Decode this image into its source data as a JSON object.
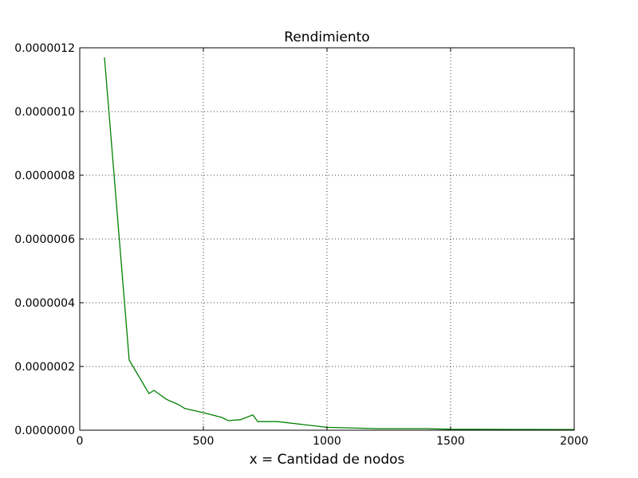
{
  "chart_data": {
    "type": "line",
    "title": "Rendimiento",
    "xlabel": "x = Cantidad de nodos",
    "ylabel": "",
    "xlim": [
      0,
      2000
    ],
    "ylim": [
      0,
      1.2e-06
    ],
    "x_ticks": [
      0,
      500,
      1000,
      1500,
      2000
    ],
    "x_tick_labels": [
      "0",
      "500",
      "1000",
      "1500",
      "2000"
    ],
    "y_ticks": [
      0,
      2e-07,
      4e-07,
      6e-07,
      8e-07,
      1e-06,
      1.2e-06
    ],
    "y_tick_labels": [
      "0.0000000",
      "0.0000002",
      "0.0000004",
      "0.0000006",
      "0.0000008",
      "0.0000010",
      "0.0000012"
    ],
    "grid": true,
    "series": [
      {
        "color": "#008000",
        "x": [
          100,
          200,
          280,
          300,
          350,
          400,
          425,
          500,
          575,
          600,
          650,
          700,
          720,
          800,
          1000,
          1200,
          1400,
          1500,
          2000
        ],
        "y": [
          1.17e-06,
          2.2e-07,
          1.15e-07,
          1.25e-07,
          9.7e-08,
          8e-08,
          6.8e-08,
          5.5e-08,
          4e-08,
          3e-08,
          3.3e-08,
          4.8e-08,
          2.7e-08,
          2.7e-08,
          9e-09,
          5e-09,
          5e-09,
          3e-09,
          2e-09
        ]
      }
    ]
  }
}
